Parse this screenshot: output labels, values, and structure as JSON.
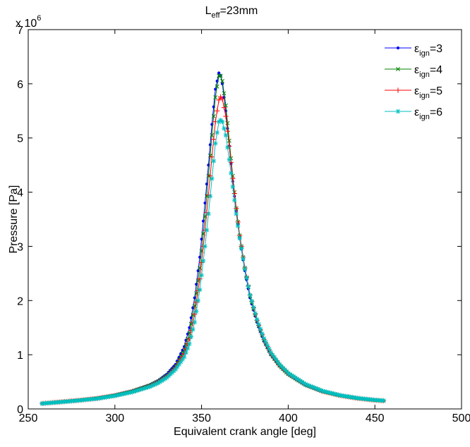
{
  "chart_data": {
    "type": "line",
    "title_base": "L",
    "title_sub": "eff",
    "title_rest": "=23mm",
    "xlabel": "Equivalent crank angle [deg]",
    "ylabel": "Pressure [Pa]",
    "xlim": [
      250,
      500
    ],
    "ylim": [
      0,
      7000000
    ],
    "xticks": [
      250,
      300,
      350,
      400,
      450,
      500
    ],
    "yticks": [
      0,
      1,
      2,
      3,
      4,
      5,
      6,
      7
    ],
    "y_multiplier_base": "x 10",
    "y_multiplier_exp": "6",
    "grid": false,
    "legend_position": "top-right",
    "series": [
      {
        "name_base": "ε",
        "name_sub": "ign",
        "name_rest": "=3",
        "color": "#0000ff",
        "marker": "dot",
        "x": [
          258,
          270,
          280,
          290,
          300,
          310,
          320,
          325,
          330,
          335,
          340,
          343,
          346,
          349,
          352,
          354,
          356,
          358,
          360,
          361,
          362,
          364,
          366,
          368,
          370,
          372,
          375,
          378,
          382,
          386,
          390,
          395,
          400,
          410,
          420,
          430,
          440,
          450,
          455
        ],
        "y": [
          100000,
          135000,
          165000,
          200000,
          255000,
          330000,
          440000,
          520000,
          640000,
          820000,
          1150000,
          1500000,
          2050000,
          2800000,
          3800000,
          4500000,
          5250000,
          5900000,
          6200000,
          6150000,
          6000000,
          5500000,
          4850000,
          4200000,
          3650000,
          3150000,
          2550000,
          2050000,
          1600000,
          1250000,
          1000000,
          790000,
          640000,
          440000,
          320000,
          245000,
          195000,
          160000,
          150000
        ]
      },
      {
        "name_base": "ε",
        "name_sub": "ign",
        "name_rest": "=4",
        "color": "#008000",
        "marker": "x",
        "x": [
          258,
          270,
          280,
          290,
          300,
          310,
          320,
          325,
          330,
          335,
          340,
          343,
          346,
          349,
          352,
          354,
          356,
          358,
          360,
          361,
          362,
          364,
          366,
          368,
          370,
          372,
          375,
          378,
          382,
          386,
          390,
          395,
          400,
          410,
          420,
          430,
          440,
          450,
          455
        ],
        "y": [
          100000,
          133000,
          162000,
          197000,
          250000,
          325000,
          430000,
          510000,
          620000,
          790000,
          1080000,
          1400000,
          1900000,
          2600000,
          3550000,
          4300000,
          5050000,
          5750000,
          6150000,
          6150000,
          6050000,
          5600000,
          4950000,
          4300000,
          3700000,
          3200000,
          2600000,
          2080000,
          1620000,
          1270000,
          1010000,
          800000,
          645000,
          445000,
          322000,
          247000,
          196000,
          161000,
          151000
        ]
      },
      {
        "name_base": "ε",
        "name_sub": "ign",
        "name_rest": "=5",
        "color": "#ff0000",
        "marker": "plus",
        "x": [
          258,
          270,
          280,
          290,
          300,
          310,
          320,
          325,
          330,
          335,
          340,
          343,
          346,
          349,
          352,
          354,
          356,
          358,
          360,
          361,
          362,
          364,
          366,
          368,
          370,
          372,
          375,
          378,
          382,
          386,
          390,
          395,
          400,
          410,
          420,
          430,
          440,
          450,
          455
        ],
        "y": [
          100000,
          132000,
          160000,
          194000,
          246000,
          318000,
          420000,
          495000,
          600000,
          760000,
          1020000,
          1300000,
          1750000,
          2400000,
          3300000,
          3950000,
          4650000,
          5300000,
          5700000,
          5760000,
          5720000,
          5400000,
          4850000,
          4250000,
          3700000,
          3200000,
          2600000,
          2100000,
          1630000,
          1280000,
          1020000,
          805000,
          650000,
          448000,
          324000,
          248000,
          197000,
          162000,
          152000
        ]
      },
      {
        "name_base": "ε",
        "name_sub": "ign",
        "name_rest": "=6",
        "color": "#00bfbf",
        "marker": "star",
        "x": [
          258,
          270,
          280,
          290,
          300,
          310,
          320,
          325,
          330,
          335,
          340,
          343,
          346,
          349,
          352,
          354,
          356,
          358,
          360,
          361,
          362,
          364,
          366,
          368,
          370,
          372,
          375,
          378,
          382,
          386,
          390,
          395,
          400,
          410,
          420,
          430,
          440,
          450,
          455
        ],
        "y": [
          100000,
          130000,
          158000,
          191000,
          242000,
          312000,
          410000,
          480000,
          580000,
          730000,
          960000,
          1200000,
          1600000,
          2200000,
          3000000,
          3600000,
          4250000,
          4900000,
          5300000,
          5330000,
          5300000,
          5050000,
          4600000,
          4100000,
          3600000,
          3150000,
          2580000,
          2100000,
          1650000,
          1300000,
          1040000,
          820000,
          660000,
          455000,
          330000,
          252000,
          200000,
          165000,
          155000
        ]
      }
    ]
  }
}
